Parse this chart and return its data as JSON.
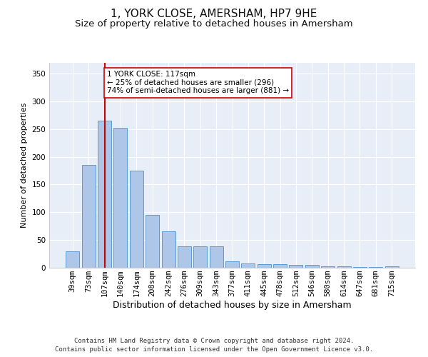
{
  "title": "1, YORK CLOSE, AMERSHAM, HP7 9HE",
  "subtitle": "Size of property relative to detached houses in Amersham",
  "xlabel": "Distribution of detached houses by size in Amersham",
  "ylabel": "Number of detached properties",
  "categories": [
    "39sqm",
    "73sqm",
    "107sqm",
    "140sqm",
    "174sqm",
    "208sqm",
    "242sqm",
    "276sqm",
    "309sqm",
    "343sqm",
    "377sqm",
    "411sqm",
    "445sqm",
    "478sqm",
    "512sqm",
    "546sqm",
    "580sqm",
    "614sqm",
    "647sqm",
    "681sqm",
    "715sqm"
  ],
  "values": [
    30,
    185,
    265,
    252,
    175,
    95,
    65,
    38,
    38,
    38,
    11,
    8,
    6,
    6,
    5,
    5,
    3,
    3,
    1,
    1,
    2
  ],
  "bar_color": "#aec6e8",
  "bar_edge_color": "#5b9bd5",
  "vline_x": 2,
  "vline_color": "#cc0000",
  "annotation_text": "1 YORK CLOSE: 117sqm\n← 25% of detached houses are smaller (296)\n74% of semi-detached houses are larger (881) →",
  "annotation_box_color": "#ffffff",
  "annotation_box_edge": "#cc0000",
  "ylim": [
    0,
    370
  ],
  "yticks": [
    0,
    50,
    100,
    150,
    200,
    250,
    300,
    350
  ],
  "background_color": "#e8eef8",
  "grid_color": "#ffffff",
  "footer_line1": "Contains HM Land Registry data © Crown copyright and database right 2024.",
  "footer_line2": "Contains public sector information licensed under the Open Government Licence v3.0.",
  "title_fontsize": 11,
  "subtitle_fontsize": 9.5,
  "xlabel_fontsize": 9,
  "ylabel_fontsize": 8,
  "tick_fontsize": 7.5,
  "footer_fontsize": 6.5
}
